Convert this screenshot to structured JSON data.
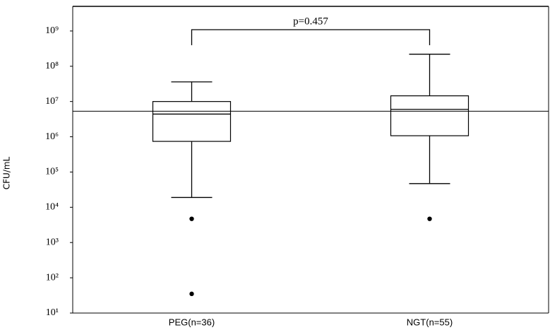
{
  "chart_data": {
    "type": "box",
    "y_label": "CFU/mL",
    "categories": [
      "PEG(n=36)",
      "NGT(n=55)"
    ],
    "boxes": [
      {
        "min": 19000,
        "q1": 740000,
        "median": 4400000,
        "q3": 10000000,
        "max": 36000000,
        "outliers": [
          4700,
          35
        ]
      },
      {
        "min": 47000,
        "q1": 1070000,
        "median": 6000000,
        "q3": 14500000,
        "max": 220000000,
        "outliers": [
          4700
        ]
      }
    ],
    "reference_line": 5300000,
    "annotation": "p=0.457",
    "ylim": [
      10,
      5000000000
    ],
    "log_y": true,
    "yticks": [
      {
        "value": 10,
        "label": "10¹"
      },
      {
        "value": 100,
        "label": "10²"
      },
      {
        "value": 1000,
        "label": "10³"
      },
      {
        "value": 10000,
        "label": "10⁴"
      },
      {
        "value": 100000,
        "label": "10⁵"
      },
      {
        "value": 1000000,
        "label": "10⁶"
      },
      {
        "value": 10000000,
        "label": "10⁷"
      },
      {
        "value": 100000000,
        "label": "10⁸"
      },
      {
        "value": 1000000000,
        "label": "10⁹"
      }
    ],
    "color": "#000000"
  }
}
